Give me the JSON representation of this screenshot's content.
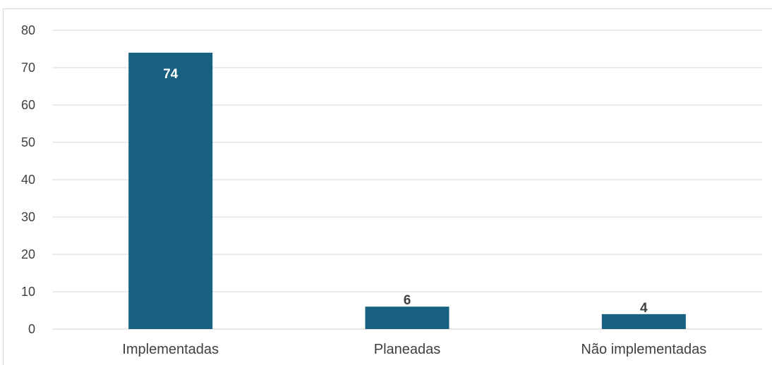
{
  "chart_data": {
    "type": "bar",
    "categories": [
      "Implementadas",
      "Planeadas",
      "Não implementadas"
    ],
    "values": [
      74,
      6,
      4
    ],
    "data_labels": [
      "74",
      "6",
      "4"
    ],
    "title": "",
    "xlabel": "",
    "ylabel": "",
    "ylim": [
      0,
      80
    ],
    "yticks": [
      "0",
      "10",
      "20",
      "30",
      "40",
      "50",
      "60",
      "70",
      "80"
    ],
    "grid": true,
    "legend": "none",
    "bar_color": "#17607f",
    "label_inside_color": "#ffffff",
    "label_outside_color": "#404040"
  }
}
